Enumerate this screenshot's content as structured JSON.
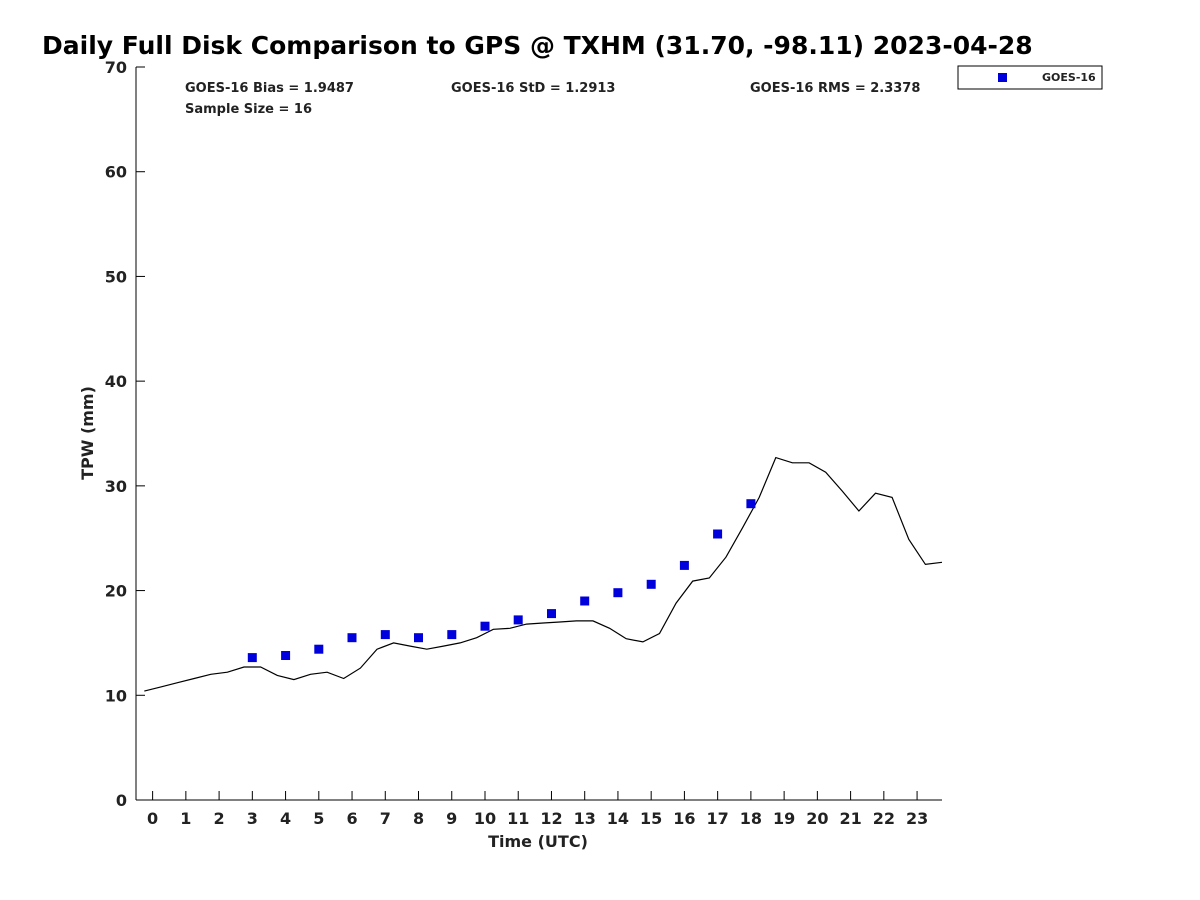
{
  "chart_data": {
    "type": "scatter",
    "title": "Daily Full Disk Comparison to GPS @ TXHM (31.70, -98.11) 2023-04-28",
    "xlabel": "Time (UTC)",
    "ylabel": "TPW (mm)",
    "xlim": [
      -0.5,
      23.75
    ],
    "ylim": [
      0,
      70
    ],
    "xticks": [
      "0",
      "1",
      "2",
      "3",
      "4",
      "5",
      "6",
      "7",
      "8",
      "9",
      "10",
      "11",
      "12",
      "13",
      "14",
      "15",
      "16",
      "17",
      "18",
      "19",
      "20",
      "21",
      "22",
      "23"
    ],
    "yticks": [
      "0",
      "10",
      "20",
      "30",
      "40",
      "50",
      "60",
      "70"
    ],
    "grid": false,
    "legend_position": "top-right",
    "stats": {
      "bias": "GOES-16 Bias = 1.9487",
      "std": "GOES-16 StD = 1.2913",
      "rms": "GOES-16 RMS = 2.3378",
      "sample": "Sample Size = 16"
    },
    "series": [
      {
        "name": "GOES-16",
        "kind": "markers",
        "color": "#0000dd",
        "marker": "square",
        "x": [
          3,
          4,
          5,
          6,
          7,
          8,
          9,
          10,
          11,
          12,
          13,
          14,
          15,
          16,
          17,
          18
        ],
        "y": [
          13.6,
          13.8,
          14.4,
          15.5,
          15.8,
          15.5,
          15.8,
          16.6,
          17.2,
          17.8,
          19.0,
          19.8,
          20.6,
          22.4,
          25.4,
          28.3
        ]
      },
      {
        "kind": "line",
        "color": "#000000",
        "x": [
          -0.25,
          0.25,
          0.75,
          1.25,
          1.75,
          2.25,
          2.75,
          3.25,
          3.75,
          4.25,
          4.75,
          5.25,
          5.75,
          6.25,
          6.75,
          7.25,
          7.75,
          8.25,
          8.75,
          9.25,
          9.75,
          10.25,
          10.75,
          11.25,
          11.75,
          12.25,
          12.75,
          13.25,
          13.75,
          14.25,
          14.75,
          15.25,
          15.75,
          16.25,
          16.75,
          17.25,
          17.75,
          18.25,
          18.75,
          19.25,
          19.75,
          20.25,
          20.75,
          21.25,
          21.75,
          22.25,
          22.75,
          23.25,
          23.75
        ],
        "y": [
          10.4,
          10.8,
          11.2,
          11.6,
          12.0,
          12.2,
          12.7,
          12.7,
          11.9,
          11.5,
          12.0,
          12.2,
          11.6,
          12.6,
          14.4,
          15.0,
          14.7,
          14.4,
          14.7,
          15.0,
          15.5,
          16.3,
          16.4,
          16.8,
          16.9,
          17.0,
          17.1,
          17.1,
          16.4,
          15.4,
          15.1,
          15.9,
          18.8,
          20.9,
          21.2,
          23.2,
          26.0,
          28.9,
          32.7,
          32.2,
          32.2,
          31.3,
          29.5,
          27.6,
          29.3,
          28.9,
          24.9,
          22.5,
          22.7
        ]
      }
    ]
  }
}
